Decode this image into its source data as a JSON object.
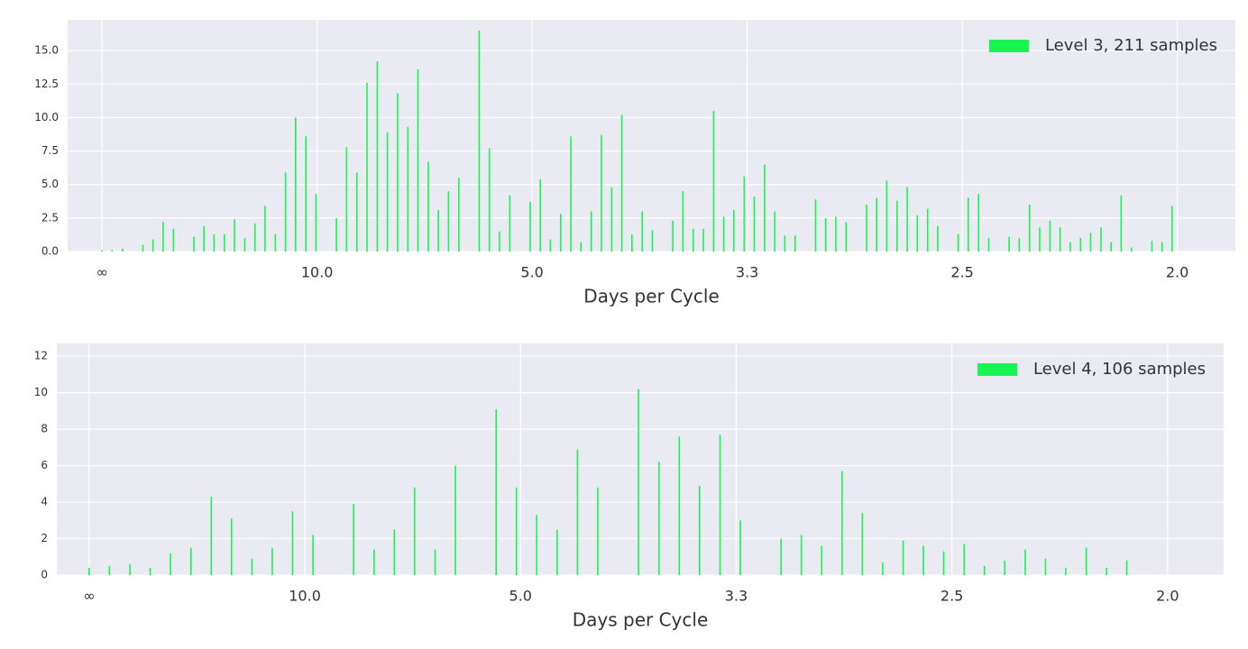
{
  "chart_data": [
    {
      "type": "bar",
      "x_label": "Days per Cycle",
      "grid": true,
      "legend": "upper right",
      "x": [
        0,
        0.0047,
        0.0095,
        0.0142,
        0.019,
        0.0237,
        0.0284,
        0.0332,
        0.0379,
        0.0427,
        0.0474,
        0.0521,
        0.0569,
        0.0616,
        0.0664,
        0.0711,
        0.0758,
        0.0806,
        0.0853,
        0.09,
        0.0948,
        0.0995,
        0.1043,
        0.109,
        0.1137,
        0.1185,
        0.1232,
        0.128,
        0.1327,
        0.1374,
        0.1422,
        0.1469,
        0.1517,
        0.1564,
        0.1611,
        0.1659,
        0.1706,
        0.1754,
        0.1801,
        0.1848,
        0.1896,
        0.1943,
        0.1991,
        0.2038,
        0.2085,
        0.2133,
        0.218,
        0.2227,
        0.2275,
        0.2322,
        0.237,
        0.2417,
        0.2464,
        0.2512,
        0.2559,
        0.2607,
        0.2654,
        0.2701,
        0.2749,
        0.2796,
        0.2844,
        0.2891,
        0.2938,
        0.2986,
        0.3033,
        0.3081,
        0.3128,
        0.3175,
        0.3223,
        0.327,
        0.3318,
        0.3365,
        0.3412,
        0.346,
        0.3507,
        0.3555,
        0.3602,
        0.3649,
        0.3697,
        0.3744,
        0.3791,
        0.3839,
        0.3886,
        0.3934,
        0.3981,
        0.4028,
        0.4076,
        0.4123,
        0.4171,
        0.4218,
        0.4265,
        0.4313,
        0.436,
        0.4408,
        0.4455,
        0.4502,
        0.455,
        0.4597,
        0.4645,
        0.4692,
        0.4739,
        0.4787,
        0.4834,
        0.4882,
        0.4929,
        0.4976
      ],
      "series": [
        {
          "name": "Level 3, 211 samples",
          "color": "#18f550",
          "values": [
            0.1,
            0.1,
            0.2,
            0,
            0.5,
            0.9,
            2.2,
            1.7,
            0,
            1.1,
            1.9,
            1.3,
            1.3,
            2.4,
            1.0,
            2.1,
            3.4,
            1.3,
            5.9,
            10.0,
            8.6,
            4.3,
            0,
            2.5,
            7.8,
            5.9,
            12.6,
            14.2,
            8.9,
            11.8,
            9.3,
            13.6,
            6.7,
            3.1,
            4.5,
            5.5,
            0,
            16.5,
            7.7,
            1.5,
            4.2,
            0,
            3.7,
            5.4,
            0.9,
            2.8,
            8.6,
            0.7,
            3.0,
            8.7,
            4.8,
            10.2,
            1.3,
            3.0,
            1.6,
            0,
            2.3,
            4.5,
            1.7,
            1.7,
            10.5,
            2.6,
            3.1,
            5.6,
            4.1,
            6.5,
            3.0,
            1.2,
            1.2,
            0,
            3.9,
            2.5,
            2.6,
            2.2,
            0,
            3.5,
            4.0,
            5.3,
            3.8,
            4.8,
            2.7,
            3.2,
            1.9,
            0,
            1.3,
            4.0,
            4.3,
            1.0,
            0,
            1.1,
            1.0,
            3.5,
            1.8,
            2.3,
            1.8,
            0.7,
            1.0,
            1.4,
            1.8,
            0.7,
            4.2,
            0.3,
            0,
            0.8,
            0.7,
            3.4
          ]
        }
      ],
      "xlim": [
        -0.016,
        0.527
      ],
      "ylim": [
        0,
        17.3
      ],
      "xticks": [
        {
          "value": 0,
          "label": "∞"
        },
        {
          "value": 0.1,
          "label": "10.0"
        },
        {
          "value": 0.2,
          "label": "5.0"
        },
        {
          "value": 0.3,
          "label": "3.3"
        },
        {
          "value": 0.4,
          "label": "2.5"
        },
        {
          "value": 0.5,
          "label": "2.0"
        }
      ],
      "yticks": [
        {
          "value": 0,
          "label": "0.0"
        },
        2.5,
        {
          "value": 5,
          "label": "5.0"
        },
        7.5,
        {
          "value": 10,
          "label": "10.0"
        },
        12.5,
        {
          "value": 15,
          "label": "15.0"
        }
      ]
    },
    {
      "type": "bar",
      "x_label": "Days per Cycle",
      "grid": true,
      "legend": "upper right",
      "x": [
        0,
        0.0094,
        0.0189,
        0.0283,
        0.0377,
        0.0472,
        0.0566,
        0.066,
        0.0755,
        0.0849,
        0.0943,
        0.1038,
        0.1132,
        0.1226,
        0.1321,
        0.1415,
        0.1509,
        0.1604,
        0.1698,
        0.1792,
        0.1887,
        0.1981,
        0.2075,
        0.217,
        0.2264,
        0.2358,
        0.2453,
        0.2547,
        0.2642,
        0.2736,
        0.283,
        0.2925,
        0.3019,
        0.3113,
        0.3208,
        0.3302,
        0.3396,
        0.3491,
        0.3585,
        0.3679,
        0.3774,
        0.3868,
        0.3962,
        0.4057,
        0.4151,
        0.4245,
        0.434,
        0.4434,
        0.4528,
        0.4623,
        0.4717,
        0.4811,
        0.4906
      ],
      "series": [
        {
          "name": "Level 4, 106 samples",
          "color": "#18f550",
          "values": [
            0.4,
            0.5,
            0.6,
            0.4,
            1.2,
            1.5,
            4.3,
            3.1,
            0.9,
            1.5,
            3.5,
            2.2,
            0,
            3.9,
            1.4,
            2.5,
            4.8,
            1.4,
            6.0,
            0,
            9.1,
            4.8,
            3.3,
            2.5,
            6.9,
            4.8,
            0,
            10.2,
            6.2,
            7.6,
            4.9,
            7.7,
            3.0,
            0,
            2.0,
            2.2,
            1.6,
            5.7,
            3.4,
            0.7,
            1.9,
            1.6,
            1.3,
            1.7,
            0.5,
            0.8,
            1.4,
            0.9,
            0.4,
            1.5,
            0.4,
            0.8,
            0
          ]
        }
      ],
      "xlim": [
        -0.015,
        0.526
      ],
      "ylim": [
        0,
        12.7
      ],
      "xticks": [
        {
          "value": 0,
          "label": "∞"
        },
        {
          "value": 0.1,
          "label": "10.0"
        },
        {
          "value": 0.2,
          "label": "5.0"
        },
        {
          "value": 0.3,
          "label": "3.3"
        },
        {
          "value": 0.4,
          "label": "2.5"
        },
        {
          "value": 0.5,
          "label": "2.0"
        }
      ],
      "yticks": [
        0,
        2,
        4,
        6,
        8,
        10,
        12
      ]
    }
  ]
}
